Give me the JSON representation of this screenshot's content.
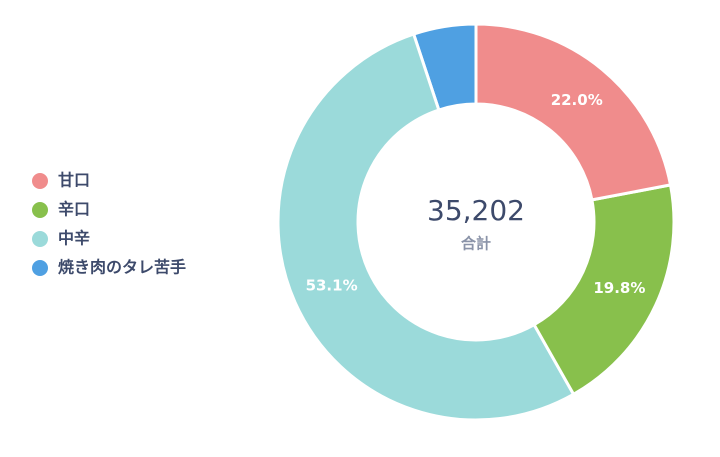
{
  "chart_data": {
    "type": "donut",
    "categories": [
      "甘口",
      "辛口",
      "中辛",
      "焼き肉のタレ苦手"
    ],
    "series": [
      {
        "values": [
          22.0,
          19.8,
          53.1,
          5.1
        ],
        "value_labels": [
          "22.0%",
          "19.8%",
          "53.1%",
          null
        ],
        "colors": [
          "#f08c8c",
          "#88c04c",
          "#9bdada",
          "#4fa0e2"
        ]
      }
    ],
    "total": {
      "value": 35202,
      "label": "35,202"
    },
    "total_caption": "合計",
    "legend": "left"
  }
}
